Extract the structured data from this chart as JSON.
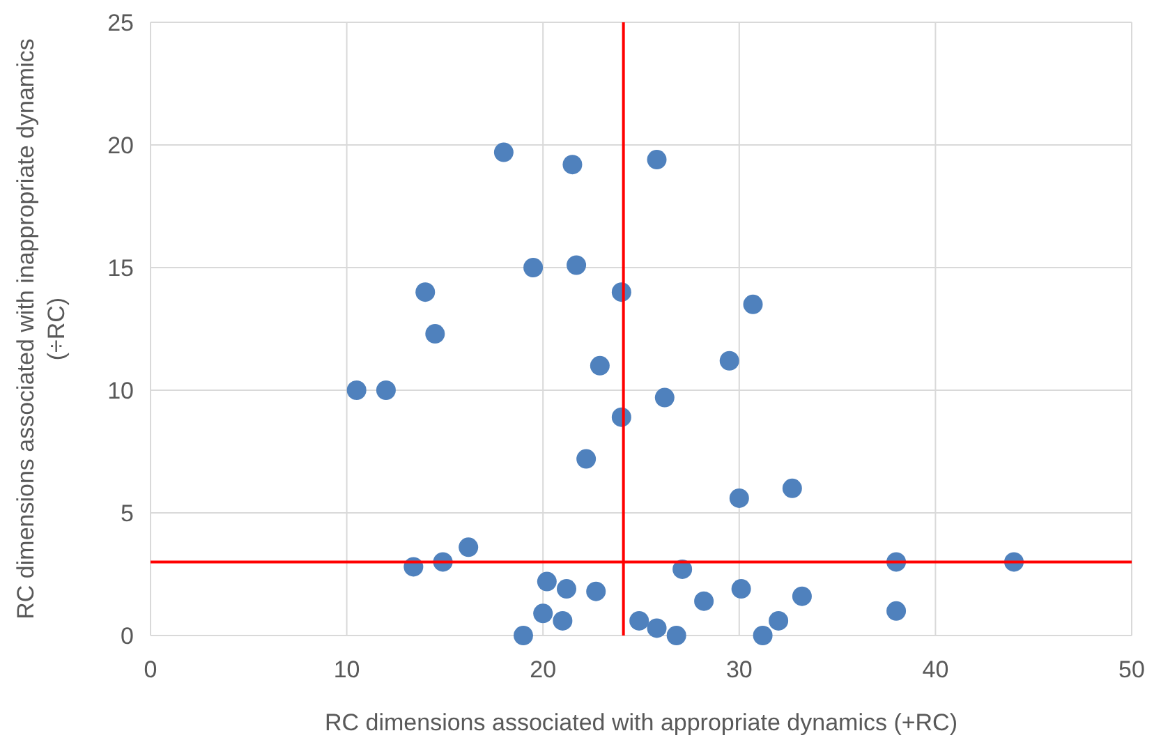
{
  "chart_data": {
    "type": "scatter",
    "xlabel": "RC dimensions associated with appropriate dynamics (+RC)",
    "ylabel": "RC dimensions associated with inappropriate dynamics (÷RC)",
    "x": [
      18,
      21.5,
      25.8,
      19.5,
      21.7,
      14,
      24,
      30.7,
      14.5,
      10.5,
      12,
      22.9,
      29.5,
      24,
      26.2,
      22.2,
      30,
      32.7,
      16.2,
      13.4,
      14.9,
      38,
      44,
      20.2,
      21.2,
      22.7,
      27.1,
      30.1,
      33.2,
      28.2,
      38,
      20,
      21,
      24.9,
      25.8,
      26.8,
      19,
      31.2,
      32
    ],
    "series": [
      {
        "color": "#4f81bd",
        "values": [
          19.7,
          19.2,
          19.4,
          15,
          15.1,
          14,
          14,
          13.5,
          12.3,
          10,
          10,
          11,
          11.2,
          8.9,
          9.7,
          7.2,
          5.6,
          6,
          3.6,
          2.8,
          3,
          3,
          3,
          2.2,
          1.9,
          1.8,
          2.7,
          1.9,
          1.6,
          1.4,
          1,
          0.9,
          0.6,
          0.6,
          0.3,
          0,
          0,
          0,
          0.6
        ]
      }
    ],
    "xlim": [
      0,
      50
    ],
    "xticks": [
      0,
      10,
      20,
      30,
      40,
      50
    ],
    "ylim": [
      0,
      25
    ],
    "yticks": [
      0,
      5,
      10,
      15,
      20,
      25
    ],
    "grid": true,
    "marker": "circle",
    "ref_lines": [
      {
        "axis": "x",
        "value": 24.1,
        "color": "#ff0000"
      },
      {
        "axis": "y",
        "value": 3,
        "color": "#ff0000"
      }
    ]
  }
}
